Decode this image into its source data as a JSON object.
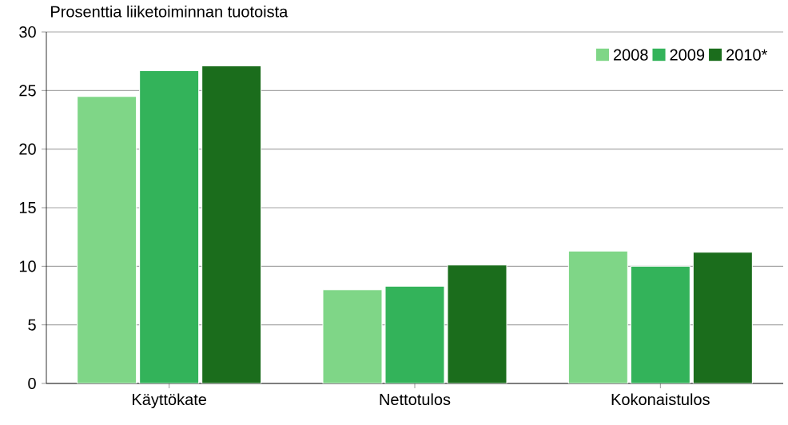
{
  "chart_data": {
    "type": "bar",
    "title": "Prosenttia liiketoiminnan tuotoista",
    "categories": [
      "Käyttökate",
      "Nettotulos",
      "Kokonaistulos"
    ],
    "series": [
      {
        "name": "2008",
        "color": "#7fd687",
        "values": [
          24.5,
          8.0,
          11.3
        ]
      },
      {
        "name": "2009",
        "color": "#33b35a",
        "values": [
          26.7,
          8.3,
          10.0
        ]
      },
      {
        "name": "2010*",
        "color": "#1b6d1c",
        "values": [
          27.1,
          10.1,
          11.2
        ]
      }
    ],
    "ylim": [
      0,
      30
    ],
    "yticks": [
      0,
      5,
      10,
      15,
      20,
      25,
      30
    ],
    "grid": "y",
    "legend": "top right"
  }
}
